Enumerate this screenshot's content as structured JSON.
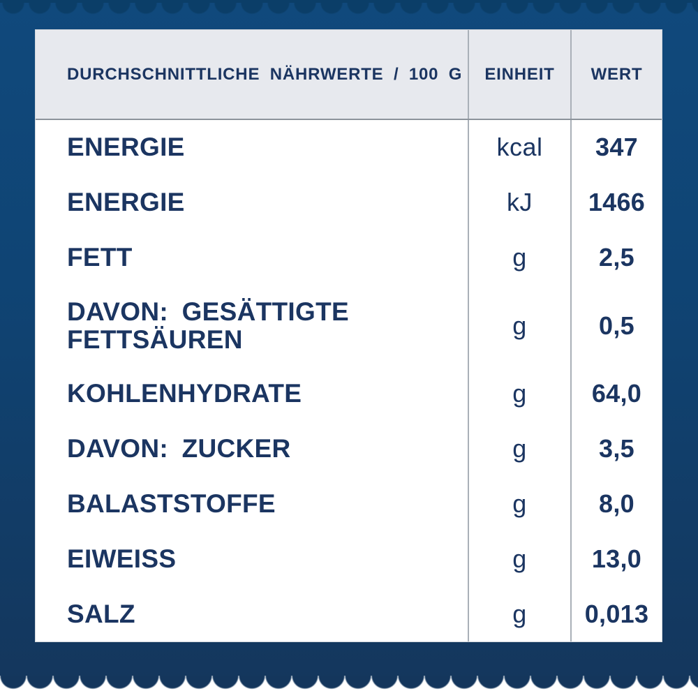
{
  "colors": {
    "background_top": "#10497c",
    "background_bottom": "#14365c",
    "top_scallop": "#0b3e68",
    "table_background": "#ffffff",
    "header_background": "#e7e9ee",
    "header_border": "#8c939b",
    "border_gray": "#a9b0b8",
    "text_navy": "#1b3561",
    "edge_white": "#ffffff"
  },
  "table": {
    "headers": [
      {
        "label": "DURCHSCHNITTLICHE NÄHRWERTE / 100 G"
      },
      {
        "label": "EINHEIT"
      },
      {
        "label": "WERT"
      }
    ],
    "rows": [
      {
        "nutrient": "ENERGIE",
        "unit": "kcal",
        "value": "347"
      },
      {
        "nutrient": "ENERGIE",
        "unit": "kJ",
        "value": "1466"
      },
      {
        "nutrient": "FETT",
        "unit": "g",
        "value": "2,5"
      },
      {
        "nutrient": "DAVON: GESÄTTIGTE FETTSÄUREN",
        "unit": "g",
        "value": "0,5"
      },
      {
        "nutrient": "KOHLENHYDRATE",
        "unit": "g",
        "value": "64,0"
      },
      {
        "nutrient": "DAVON: ZUCKER",
        "unit": "g",
        "value": "3,5"
      },
      {
        "nutrient": "BALASTSTOFFE",
        "unit": "g",
        "value": "8,0"
      },
      {
        "nutrient": "EIWEISS",
        "unit": "g",
        "value": "13,0"
      },
      {
        "nutrient": "SALZ",
        "unit": "g",
        "value": "0,013"
      }
    ]
  }
}
